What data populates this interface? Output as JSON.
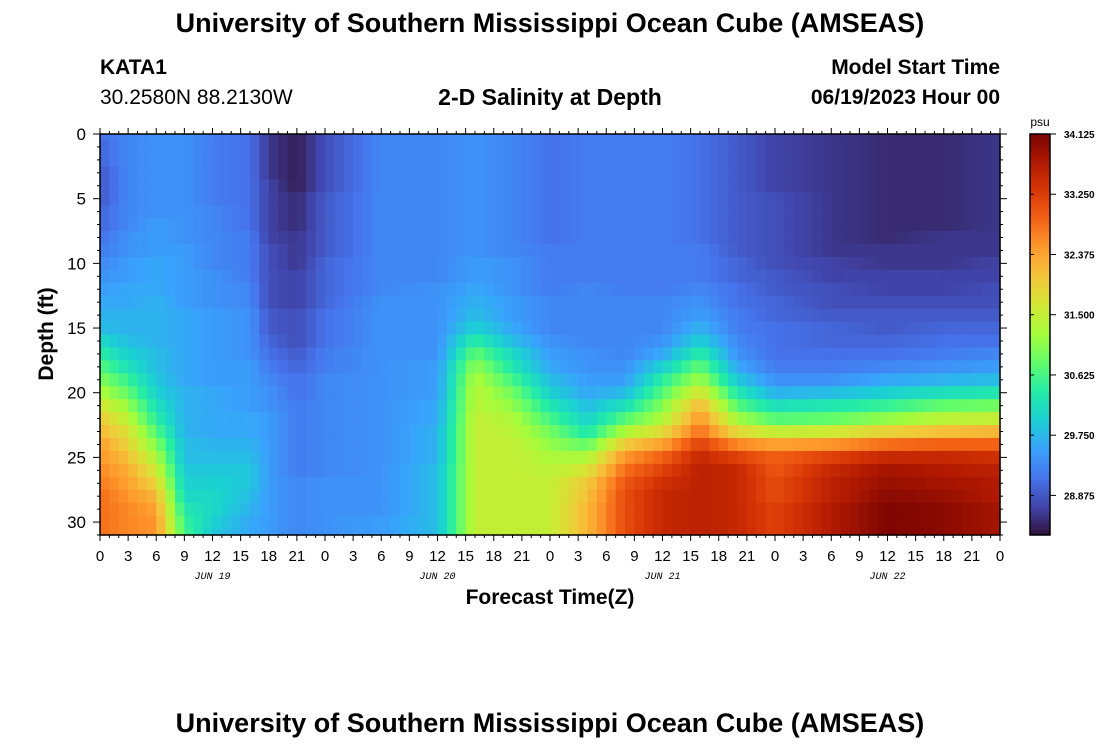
{
  "page": {
    "title": "University of Southern Mississippi Ocean Cube (AMSEAS)",
    "bottom_title": "University of Southern Mississippi Ocean Cube (AMSEAS)",
    "station": {
      "id": "KATA1",
      "coords": "30.2580N  88.2130W"
    },
    "plot_title": "2-D Salinity at Depth",
    "model_start": {
      "label": "Model Start Time",
      "value": "06/19/2023 Hour 00"
    }
  },
  "chart_data": {
    "type": "heatmap",
    "title": "2-D Salinity at Depth",
    "xlabel": "Forecast Time(Z)",
    "ylabel": "Depth (ft)",
    "x_hours_range": [
      0,
      96
    ],
    "y_range_ft": [
      0,
      31
    ],
    "y_inverted": true,
    "x_tick_labels": [
      "0",
      "3",
      "6",
      "9",
      "12",
      "15",
      "18",
      "21",
      "0",
      "3",
      "6",
      "9",
      "12",
      "15",
      "18",
      "21",
      "0",
      "3",
      "6",
      "9",
      "12",
      "15",
      "18",
      "21",
      "0",
      "3",
      "6",
      "9",
      "12",
      "15",
      "18",
      "21",
      "0"
    ],
    "y_tick_labels": [
      "0",
      "5",
      "10",
      "15",
      "20",
      "25",
      "30"
    ],
    "y_ticks_ft": [
      0,
      5,
      10,
      15,
      20,
      25,
      30
    ],
    "date_labels": [
      {
        "label": "JUN 19",
        "hour": 12
      },
      {
        "label": "JUN 20",
        "hour": 36
      },
      {
        "label": "JUN 21",
        "hour": 60
      },
      {
        "label": "JUN 22",
        "hour": 84
      }
    ],
    "colorbar": {
      "unit": "psu",
      "min": 28.3,
      "max": 34.125,
      "tick_labels": [
        "34.125",
        "33.250",
        "32.375",
        "31.500",
        "30.625",
        "29.750",
        "28.875"
      ],
      "tick_values": [
        34.125,
        33.25,
        32.375,
        31.5,
        30.625,
        29.75,
        28.875
      ]
    },
    "depth_levels_ft": [
      0,
      1,
      2,
      3,
      4,
      5,
      6,
      7,
      8,
      9,
      10,
      11,
      12,
      13,
      14,
      15,
      16,
      17,
      18,
      19,
      20,
      21,
      22,
      23,
      24,
      25,
      26,
      27,
      28,
      29,
      30,
      31
    ],
    "profile_times_h": [
      0,
      3,
      6,
      9,
      12,
      16,
      18,
      21,
      24,
      30,
      36,
      40,
      44,
      48,
      52,
      56,
      60,
      64,
      68,
      72,
      78,
      84,
      90,
      96
    ],
    "profiles": [
      {
        "hour": 0,
        "sal": [
          29.1,
          29.0,
          29.0,
          28.9,
          28.9,
          28.9,
          29.0,
          29.0,
          29.1,
          29.2,
          29.3,
          29.4,
          29.5,
          29.6,
          29.7,
          29.8,
          30.1,
          30.4,
          30.7,
          31.0,
          31.3,
          31.7,
          32.0,
          32.2,
          32.4,
          32.5,
          32.6,
          32.7,
          32.8,
          32.8,
          32.8,
          32.8
        ]
      },
      {
        "hour": 3,
        "sal": [
          29.3,
          29.3,
          29.3,
          29.3,
          29.3,
          29.3,
          29.3,
          29.3,
          29.4,
          29.4,
          29.5,
          29.5,
          29.6,
          29.6,
          29.7,
          29.7,
          29.8,
          30.0,
          30.2,
          30.5,
          30.8,
          31.1,
          31.4,
          31.7,
          31.9,
          32.1,
          32.3,
          32.4,
          32.5,
          32.6,
          32.6,
          32.6
        ]
      },
      {
        "hour": 6,
        "sal": [
          29.4,
          29.4,
          29.4,
          29.4,
          29.4,
          29.4,
          29.4,
          29.5,
          29.5,
          29.5,
          29.6,
          29.6,
          29.6,
          29.7,
          29.7,
          29.7,
          29.7,
          29.8,
          29.8,
          29.9,
          30.0,
          30.2,
          30.4,
          30.7,
          31.0,
          31.3,
          31.6,
          31.9,
          32.2,
          32.4,
          32.5,
          32.5
        ]
      },
      {
        "hour": 9,
        "sal": [
          29.4,
          29.4,
          29.4,
          29.4,
          29.4,
          29.4,
          29.4,
          29.4,
          29.4,
          29.5,
          29.5,
          29.5,
          29.5,
          29.5,
          29.6,
          29.6,
          29.6,
          29.6,
          29.6,
          29.6,
          29.7,
          29.7,
          29.7,
          29.7,
          29.8,
          29.8,
          29.9,
          30.0,
          30.1,
          30.3,
          30.5,
          30.6
        ]
      },
      {
        "hour": 12,
        "sal": [
          29.2,
          29.2,
          29.2,
          29.2,
          29.2,
          29.2,
          29.3,
          29.3,
          29.3,
          29.3,
          29.3,
          29.4,
          29.4,
          29.4,
          29.5,
          29.5,
          29.5,
          29.5,
          29.5,
          29.5,
          29.6,
          29.6,
          29.6,
          29.6,
          29.7,
          29.8,
          29.9,
          30.0,
          30.1,
          30.1,
          30.0,
          29.9
        ]
      },
      {
        "hour": 16,
        "sal": [
          29.1,
          29.1,
          29.1,
          29.1,
          29.1,
          29.1,
          29.1,
          29.1,
          29.2,
          29.2,
          29.2,
          29.2,
          29.3,
          29.3,
          29.4,
          29.4,
          29.4,
          29.4,
          29.5,
          29.5,
          29.5,
          29.5,
          29.6,
          29.6,
          29.7,
          29.8,
          29.9,
          29.9,
          29.8,
          29.7,
          29.6,
          29.6
        ]
      },
      {
        "hour": 18,
        "sal": [
          28.6,
          28.6,
          28.6,
          28.6,
          28.7,
          28.7,
          28.7,
          28.7,
          28.7,
          28.8,
          28.8,
          28.8,
          28.8,
          28.8,
          28.9,
          28.9,
          29.0,
          29.1,
          29.2,
          29.3,
          29.4,
          29.4,
          29.5,
          29.5,
          29.5,
          29.5,
          29.5,
          29.5,
          29.5,
          29.5,
          29.5,
          29.5
        ]
      },
      {
        "hour": 21,
        "sal": [
          28.4,
          28.4,
          28.4,
          28.4,
          28.4,
          28.5,
          28.5,
          28.5,
          28.6,
          28.6,
          28.6,
          28.7,
          28.7,
          28.7,
          28.8,
          28.8,
          28.8,
          28.9,
          29.0,
          29.1,
          29.1,
          29.2,
          29.2,
          29.2,
          29.2,
          29.2,
          29.2,
          29.3,
          29.3,
          29.3,
          29.3,
          29.3
        ]
      },
      {
        "hour": 24,
        "sal": [
          28.8,
          28.8,
          28.8,
          28.8,
          28.8,
          28.9,
          28.9,
          28.9,
          28.9,
          28.9,
          29.0,
          29.0,
          29.0,
          29.0,
          29.1,
          29.1,
          29.1,
          29.2,
          29.2,
          29.3,
          29.3,
          29.3,
          29.3,
          29.3,
          29.3,
          29.3,
          29.3,
          29.4,
          29.4,
          29.4,
          29.4,
          29.4
        ]
      },
      {
        "hour": 30,
        "sal": [
          29.3,
          29.3,
          29.3,
          29.3,
          29.3,
          29.3,
          29.3,
          29.3,
          29.3,
          29.3,
          29.3,
          29.3,
          29.3,
          29.4,
          29.4,
          29.4,
          29.4,
          29.4,
          29.4,
          29.4,
          29.4,
          29.4,
          29.4,
          29.4,
          29.4,
          29.4,
          29.4,
          29.4,
          29.4,
          29.4,
          29.5,
          29.5
        ]
      },
      {
        "hour": 36,
        "sal": [
          29.3,
          29.3,
          29.3,
          29.3,
          29.3,
          29.3,
          29.3,
          29.3,
          29.3,
          29.3,
          29.3,
          29.3,
          29.4,
          29.4,
          29.4,
          29.4,
          29.4,
          29.4,
          29.5,
          29.5,
          29.5,
          29.6,
          29.6,
          29.7,
          29.7,
          29.7,
          29.8,
          29.8,
          29.8,
          29.8,
          29.8,
          29.8
        ]
      },
      {
        "hour": 40,
        "sal": [
          29.4,
          29.4,
          29.4,
          29.4,
          29.4,
          29.4,
          29.4,
          29.4,
          29.4,
          29.4,
          29.5,
          29.5,
          29.6,
          29.7,
          29.8,
          30.0,
          30.4,
          30.8,
          31.1,
          31.3,
          31.4,
          31.4,
          31.5,
          31.5,
          31.5,
          31.5,
          31.5,
          31.5,
          31.5,
          31.5,
          31.5,
          31.5
        ]
      },
      {
        "hour": 44,
        "sal": [
          29.3,
          29.3,
          29.3,
          29.3,
          29.3,
          29.3,
          29.3,
          29.3,
          29.3,
          29.3,
          29.4,
          29.4,
          29.4,
          29.5,
          29.5,
          29.6,
          29.8,
          30.1,
          30.3,
          30.6,
          30.9,
          31.1,
          31.3,
          31.4,
          31.5,
          31.5,
          31.5,
          31.5,
          31.5,
          31.5,
          31.5,
          31.5
        ]
      },
      {
        "hour": 48,
        "sal": [
          29.1,
          29.1,
          29.1,
          29.1,
          29.1,
          29.1,
          29.1,
          29.1,
          29.1,
          29.2,
          29.2,
          29.2,
          29.2,
          29.3,
          29.3,
          29.3,
          29.4,
          29.5,
          29.6,
          29.8,
          30.0,
          30.3,
          30.6,
          30.9,
          31.1,
          31.3,
          31.4,
          31.5,
          31.5,
          31.5,
          31.5,
          31.5
        ]
      },
      {
        "hour": 52,
        "sal": [
          29.2,
          29.2,
          29.2,
          29.2,
          29.2,
          29.2,
          29.2,
          29.2,
          29.2,
          29.2,
          29.2,
          29.2,
          29.3,
          29.3,
          29.3,
          29.3,
          29.3,
          29.4,
          29.4,
          29.5,
          29.6,
          29.8,
          30.0,
          30.3,
          30.8,
          31.3,
          31.7,
          32.0,
          32.1,
          32.2,
          32.2,
          32.2
        ]
      },
      {
        "hour": 56,
        "sal": [
          29.2,
          29.2,
          29.2,
          29.2,
          29.2,
          29.2,
          29.2,
          29.2,
          29.2,
          29.2,
          29.2,
          29.2,
          29.2,
          29.3,
          29.3,
          29.3,
          29.3,
          29.3,
          29.4,
          29.5,
          29.8,
          30.2,
          30.7,
          31.3,
          32.0,
          32.5,
          32.8,
          33.0,
          33.1,
          33.1,
          33.1,
          33.1
        ]
      },
      {
        "hour": 60,
        "sal": [
          29.2,
          29.2,
          29.2,
          29.2,
          29.2,
          29.2,
          29.2,
          29.2,
          29.2,
          29.2,
          29.2,
          29.2,
          29.2,
          29.3,
          29.3,
          29.3,
          29.4,
          29.6,
          30.0,
          30.4,
          30.7,
          31.0,
          31.3,
          31.8,
          32.4,
          32.9,
          33.2,
          33.4,
          33.5,
          33.5,
          33.5,
          33.5
        ]
      },
      {
        "hour": 64,
        "sal": [
          29.1,
          29.1,
          29.1,
          29.1,
          29.1,
          29.1,
          29.1,
          29.1,
          29.1,
          29.2,
          29.2,
          29.2,
          29.3,
          29.4,
          29.5,
          29.7,
          30.0,
          30.4,
          30.8,
          31.2,
          31.7,
          32.2,
          32.5,
          32.8,
          33.2,
          33.5,
          33.6,
          33.6,
          33.6,
          33.6,
          33.6,
          33.6
        ]
      },
      {
        "hour": 68,
        "sal": [
          28.9,
          28.9,
          28.9,
          28.9,
          28.9,
          28.9,
          28.9,
          28.9,
          28.9,
          28.9,
          29.0,
          29.0,
          29.1,
          29.1,
          29.2,
          29.2,
          29.3,
          29.4,
          29.6,
          29.9,
          30.3,
          30.7,
          31.2,
          31.8,
          32.6,
          33.2,
          33.5,
          33.5,
          33.5,
          33.5,
          33.5,
          33.5
        ]
      },
      {
        "hour": 72,
        "sal": [
          28.7,
          28.7,
          28.7,
          28.7,
          28.7,
          28.8,
          28.8,
          28.8,
          28.8,
          28.8,
          28.8,
          28.9,
          28.9,
          29.0,
          29.0,
          29.1,
          29.1,
          29.1,
          29.2,
          29.4,
          29.7,
          30.2,
          30.7,
          31.5,
          32.4,
          32.9,
          33.0,
          33.1,
          33.1,
          33.2,
          33.2,
          33.2
        ]
      },
      {
        "hour": 78,
        "sal": [
          28.6,
          28.6,
          28.6,
          28.6,
          28.6,
          28.6,
          28.6,
          28.6,
          28.6,
          28.6,
          28.7,
          28.7,
          28.8,
          28.8,
          28.9,
          29.0,
          29.0,
          29.1,
          29.2,
          29.4,
          29.8,
          30.3,
          30.8,
          31.6,
          32.5,
          33.2,
          33.5,
          33.6,
          33.6,
          33.7,
          33.7,
          33.7
        ]
      },
      {
        "hour": 84,
        "sal": [
          28.5,
          28.5,
          28.5,
          28.5,
          28.5,
          28.5,
          28.5,
          28.5,
          28.5,
          28.6,
          28.6,
          28.7,
          28.7,
          28.8,
          28.9,
          28.9,
          29.0,
          29.1,
          29.3,
          29.6,
          30.0,
          30.5,
          31.1,
          31.9,
          32.8,
          33.5,
          33.8,
          33.9,
          34.0,
          34.1,
          34.1,
          34.1
        ]
      },
      {
        "hour": 90,
        "sal": [
          28.5,
          28.5,
          28.5,
          28.5,
          28.5,
          28.5,
          28.5,
          28.5,
          28.6,
          28.6,
          28.6,
          28.7,
          28.7,
          28.8,
          28.9,
          29.0,
          29.1,
          29.2,
          29.4,
          29.7,
          30.2,
          30.8,
          31.4,
          32.1,
          32.9,
          33.5,
          33.7,
          33.8,
          33.9,
          34.0,
          34.0,
          34.0
        ]
      },
      {
        "hour": 96,
        "sal": [
          28.6,
          28.6,
          28.6,
          28.6,
          28.6,
          28.6,
          28.6,
          28.6,
          28.6,
          28.6,
          28.7,
          28.7,
          28.8,
          28.8,
          28.9,
          29.0,
          29.1,
          29.3,
          29.5,
          29.8,
          30.3,
          30.9,
          31.5,
          32.2,
          32.9,
          33.4,
          33.6,
          33.7,
          33.7,
          33.8,
          33.8,
          33.8
        ]
      }
    ]
  },
  "colors": {
    "colormap": [
      "#30123b",
      "#4145ab",
      "#4675ed",
      "#39a2fc",
      "#1bcfd4",
      "#24eca6",
      "#61fc6c",
      "#a4fc3b",
      "#d1e834",
      "#f3c63a",
      "#fe9b2d",
      "#f36315",
      "#d93806",
      "#b11901",
      "#7a0402"
    ]
  }
}
